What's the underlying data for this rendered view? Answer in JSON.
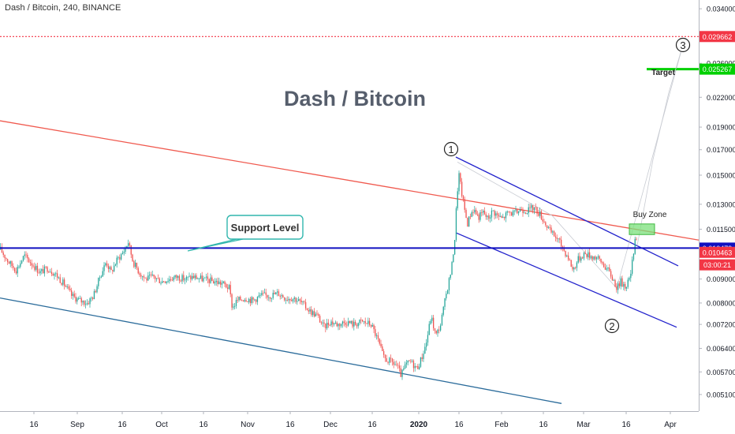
{
  "header": {
    "symbol_title": "Dash / Bitcoin, 240, BINANCE"
  },
  "chart_data": {
    "type": "candlestick",
    "title": "Dash / Bitcoin",
    "x_ticks": [
      "16",
      "Sep",
      "16",
      "Oct",
      "16",
      "Nov",
      "16",
      "Dec",
      "16",
      "2020",
      "16",
      "Feb",
      "16",
      "Mar",
      "16",
      "Apr"
    ],
    "y_ticks": [
      "0.034000",
      "0.026000",
      "0.022000",
      "0.019000",
      "0.017000",
      "0.015000",
      "0.013000",
      "0.011500",
      "0.009000",
      "0.008000",
      "0.007200",
      "0.006400",
      "0.005700",
      "0.005100"
    ],
    "y_scale": "log",
    "y_range": [
      0.0047,
      0.0355
    ],
    "price_path": [
      [
        0,
        0.0104
      ],
      [
        10,
        0.0098
      ],
      [
        20,
        0.0094
      ],
      [
        30,
        0.0101
      ],
      [
        40,
        0.0097
      ],
      [
        50,
        0.0093
      ],
      [
        60,
        0.0095
      ],
      [
        70,
        0.0092
      ],
      [
        80,
        0.0088
      ],
      [
        90,
        0.0083
      ],
      [
        100,
        0.0081
      ],
      [
        110,
        0.008
      ],
      [
        118,
        0.0083
      ],
      [
        126,
        0.0091
      ],
      [
        134,
        0.0098
      ],
      [
        140,
        0.0093
      ],
      [
        148,
        0.0099
      ],
      [
        156,
        0.0103
      ],
      [
        162,
        0.0108
      ],
      [
        168,
        0.0098
      ],
      [
        176,
        0.0093
      ],
      [
        184,
        0.009
      ],
      [
        194,
        0.0091
      ],
      [
        204,
        0.0089
      ],
      [
        214,
        0.009
      ],
      [
        224,
        0.0091
      ],
      [
        234,
        0.009
      ],
      [
        244,
        0.0091
      ],
      [
        256,
        0.009
      ],
      [
        270,
        0.0089
      ],
      [
        282,
        0.0088
      ],
      [
        290,
        0.0086
      ],
      [
        294,
        0.0078
      ],
      [
        300,
        0.0081
      ],
      [
        310,
        0.0082
      ],
      [
        320,
        0.0081
      ],
      [
        330,
        0.0083
      ],
      [
        342,
        0.0083
      ],
      [
        352,
        0.0084
      ],
      [
        362,
        0.0082
      ],
      [
        372,
        0.0082
      ],
      [
        382,
        0.008
      ],
      [
        392,
        0.0077
      ],
      [
        402,
        0.0075
      ],
      [
        410,
        0.0071
      ],
      [
        418,
        0.0073
      ],
      [
        428,
        0.0072
      ],
      [
        438,
        0.0073
      ],
      [
        448,
        0.0072
      ],
      [
        458,
        0.0073
      ],
      [
        470,
        0.0072
      ],
      [
        478,
        0.0067
      ],
      [
        486,
        0.0061
      ],
      [
        494,
        0.006
      ],
      [
        502,
        0.0059
      ],
      [
        508,
        0.0056
      ],
      [
        514,
        0.0059
      ],
      [
        520,
        0.006
      ],
      [
        528,
        0.0058
      ],
      [
        534,
        0.0061
      ],
      [
        540,
        0.0066
      ],
      [
        546,
        0.0075
      ],
      [
        552,
        0.0068
      ],
      [
        558,
        0.0072
      ],
      [
        566,
        0.0085
      ],
      [
        572,
        0.0095
      ],
      [
        576,
        0.011
      ],
      [
        578,
        0.0128
      ],
      [
        581,
        0.0152
      ],
      [
        584,
        0.014
      ],
      [
        588,
        0.0128
      ],
      [
        592,
        0.0118
      ],
      [
        596,
        0.0124
      ],
      [
        600,
        0.0127
      ],
      [
        606,
        0.0122
      ],
      [
        612,
        0.0125
      ],
      [
        618,
        0.0121
      ],
      [
        624,
        0.0126
      ],
      [
        630,
        0.0123
      ],
      [
        636,
        0.0121
      ],
      [
        644,
        0.0125
      ],
      [
        652,
        0.0124
      ],
      [
        660,
        0.0127
      ],
      [
        668,
        0.0126
      ],
      [
        676,
        0.0128
      ],
      [
        684,
        0.0124
      ],
      [
        690,
        0.0119
      ],
      [
        698,
        0.0113
      ],
      [
        706,
        0.011
      ],
      [
        714,
        0.0104
      ],
      [
        720,
        0.01
      ],
      [
        726,
        0.0094
      ],
      [
        732,
        0.0099
      ],
      [
        740,
        0.0102
      ],
      [
        748,
        0.0101
      ],
      [
        756,
        0.01
      ],
      [
        764,
        0.0097
      ],
      [
        772,
        0.0093
      ],
      [
        778,
        0.0089
      ],
      [
        782,
        0.0086
      ],
      [
        786,
        0.0089
      ],
      [
        792,
        0.0087
      ],
      [
        798,
        0.009
      ],
      [
        802,
        0.01
      ],
      [
        805,
        0.0113
      ],
      [
        808,
        0.0106
      ]
    ],
    "target_path": [
      [
        808,
        0.0106
      ],
      [
        828,
        0.0162
      ],
      [
        848,
        0.0225
      ],
      [
        866,
        0.0285
      ]
    ],
    "wave_path": [
      [
        580,
        0.016
      ],
      [
        700,
        0.0123
      ],
      [
        782,
        0.0086
      ],
      [
        866,
        0.0285
      ]
    ],
    "levels": [
      {
        "name": "red-dotted",
        "price": 0.029662,
        "label": "0.029662",
        "color": "#f23645"
      },
      {
        "name": "target",
        "price": 0.025267,
        "label": "0.025267",
        "color": "#00d000"
      },
      {
        "name": "support",
        "price": 0.010479,
        "label": "0.010479",
        "color": "#1010c0"
      }
    ],
    "price_tags": [
      {
        "name": "last-price",
        "price": 0.010263,
        "label": "0.010463",
        "color": "#f23645"
      },
      {
        "name": "countdown",
        "price": 0.00965,
        "label": "03:00:21",
        "color": "#f23645"
      }
    ],
    "trendlines": [
      {
        "name": "red-resistance",
        "p1": [
          0,
          0.0196
        ],
        "p2": [
          886,
          0.0109
        ],
        "color": "#f05a4f"
      },
      {
        "name": "blue-long-support",
        "p1": [
          0,
          0.0082
        ],
        "p2": [
          712,
          0.00488
        ],
        "color": "#2a6b9a"
      },
      {
        "name": "channel-top",
        "p1": [
          578,
          0.0164
        ],
        "p2": [
          860,
          0.0096
        ],
        "color": "#2222cc"
      },
      {
        "name": "channel-bottom",
        "p1": [
          578,
          0.0113
        ],
        "p2": [
          858,
          0.0071
        ],
        "color": "#2222cc"
      }
    ],
    "annotations": {
      "support_label": "Support Level",
      "buy_zone_label": "Buy Zone",
      "target_label": "Target",
      "wave1": "1",
      "wave2": "2",
      "wave3": "3"
    },
    "buy_zone": {
      "x1": 798,
      "x2": 830,
      "price_top": 0.0118,
      "price_bottom": 0.0112
    }
  },
  "colors": {
    "up": "#26a69a",
    "down": "#ef5350",
    "axis": "#b2b5be",
    "text": "#131722"
  }
}
